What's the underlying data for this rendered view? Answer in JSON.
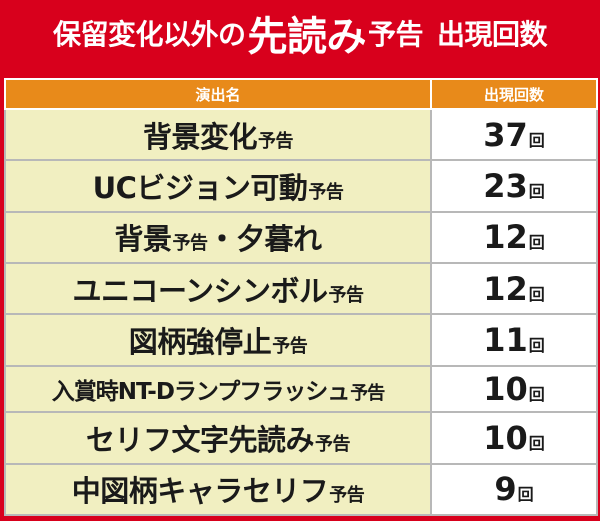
{
  "title": {
    "part1": "保留変化以外の",
    "part2": "先読み",
    "part3": "予告",
    "part4": "出現回数"
  },
  "header": {
    "col1": "演出名",
    "col2": "出現回数"
  },
  "rows": [
    {
      "name": "背景変化",
      "suffix": "予告",
      "count": "37",
      "unit": "回"
    },
    {
      "name": "UCビジョン可動",
      "suffix": "予告",
      "count": "23",
      "unit": "回"
    },
    {
      "name": "背景",
      "suffix": "予告",
      "tail": "・夕暮れ",
      "count": "12",
      "unit": "回"
    },
    {
      "name": "ユニコーンシンボル",
      "suffix": "予告",
      "count": "12",
      "unit": "回"
    },
    {
      "name": "図柄強停止",
      "suffix": "予告",
      "count": "11",
      "unit": "回"
    },
    {
      "name": "入賞時NT-Dランプフラッシュ",
      "suffix": "予告",
      "count": "10",
      "unit": "回"
    },
    {
      "name": "セリフ文字先読み",
      "suffix": "予告",
      "count": "10",
      "unit": "回"
    },
    {
      "name": "中図柄キャラセリフ",
      "suffix": "予告",
      "count": "9",
      "unit": "回"
    }
  ]
}
